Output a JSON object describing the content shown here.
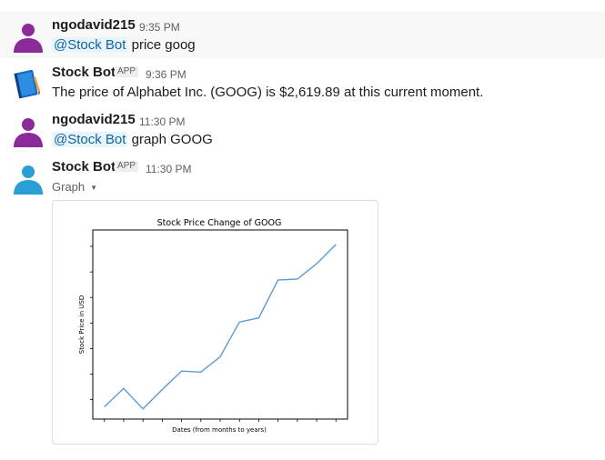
{
  "messages": [
    {
      "user": "ngodavid215",
      "time": "9:35 PM",
      "mention": "@Stock Bot",
      "text": " price goog",
      "avatar_color": "#8b2a99"
    },
    {
      "user": "Stock Bot",
      "badge": "APP",
      "time": "9:36 PM",
      "text": "The price of Alphabet Inc. (GOOG) is $2,619.89 at this current moment."
    },
    {
      "user": "ngodavid215",
      "time": "11:30 PM",
      "mention": "@Stock Bot",
      "text": " graph GOOG",
      "avatar_color": "#8b2a99"
    },
    {
      "user": "Stock Bot",
      "badge": "APP",
      "time": "11:30 PM",
      "attachment_label": "Graph",
      "avatar_color": "#2a9fd6"
    }
  ],
  "chart_data": {
    "type": "line",
    "title": "Stock Price Change of GOOG",
    "xlabel": "Dates (from months to years)",
    "ylabel": "Stock Price in USD",
    "x": [
      0,
      1,
      2,
      3,
      4,
      5,
      6,
      7,
      8,
      9,
      10,
      11,
      12
    ],
    "values": [
      18,
      36,
      16,
      35,
      53,
      52,
      67,
      101,
      105,
      142,
      143,
      158,
      177
    ],
    "xlim": [
      -0.6,
      12.6
    ],
    "ylim": [
      6,
      191
    ],
    "grid": false,
    "line_color": "#5b9bd5",
    "tick_labels_shown": false
  }
}
